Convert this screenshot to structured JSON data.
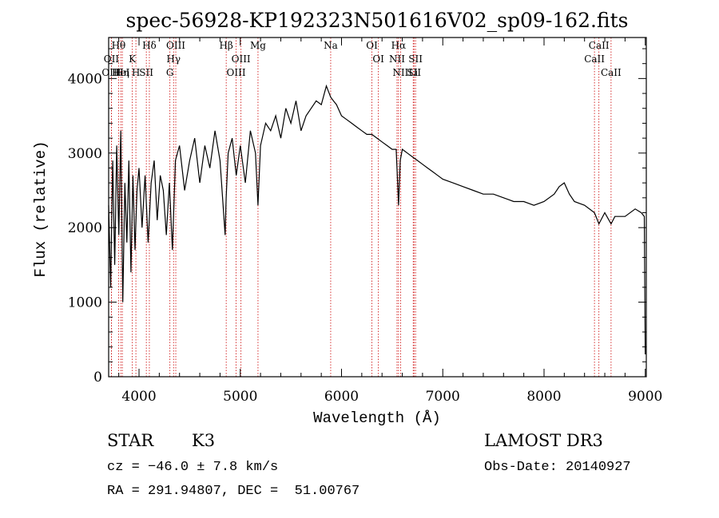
{
  "chart_data": {
    "type": "line",
    "title": "spec-56928-KP192323N501616V02_sp09-162.fits",
    "xlabel": "Wavelength (Å)",
    "ylabel": "Flux (relative)",
    "xlim": [
      3700,
      9010
    ],
    "ylim": [
      0,
      4550
    ],
    "xticks": [
      4000,
      5000,
      6000,
      7000,
      8000,
      9000
    ],
    "xtick_labels": [
      "4000",
      "5000",
      "6000",
      "7000",
      "8000",
      "9000"
    ],
    "yticks": [
      0,
      1000,
      2000,
      3000,
      4000
    ],
    "ytick_labels": [
      "0",
      "1000",
      "2000",
      "3000",
      "4000"
    ],
    "grid": false,
    "series": [
      {
        "name": "spectrum",
        "x": [
          3700,
          3720,
          3740,
          3760,
          3780,
          3800,
          3820,
          3840,
          3860,
          3880,
          3900,
          3920,
          3940,
          3960,
          3980,
          4000,
          4030,
          4060,
          4090,
          4120,
          4150,
          4180,
          4210,
          4240,
          4270,
          4300,
          4330,
          4360,
          4400,
          4450,
          4500,
          4550,
          4600,
          4650,
          4700,
          4750,
          4800,
          4850,
          4861,
          4880,
          4920,
          4960,
          5000,
          5050,
          5100,
          5150,
          5175,
          5200,
          5250,
          5300,
          5350,
          5400,
          5450,
          5500,
          5550,
          5600,
          5650,
          5700,
          5750,
          5800,
          5850,
          5893,
          5920,
          5950,
          6000,
          6050,
          6100,
          6150,
          6200,
          6250,
          6300,
          6350,
          6400,
          6450,
          6500,
          6540,
          6563,
          6580,
          6600,
          6650,
          6700,
          6750,
          6800,
          6850,
          6900,
          6950,
          7000,
          7100,
          7200,
          7300,
          7400,
          7500,
          7600,
          7700,
          7800,
          7900,
          8000,
          8100,
          8150,
          8200,
          8250,
          8300,
          8400,
          8498,
          8542,
          8600,
          8662,
          8700,
          8800,
          8900,
          8960,
          8990,
          9000
        ],
        "y": [
          2300,
          1200,
          2900,
          1500,
          3100,
          1900,
          3300,
          1000,
          2600,
          1800,
          2900,
          1400,
          2700,
          1700,
          2500,
          2800,
          2000,
          2700,
          1800,
          2600,
          2900,
          2100,
          2700,
          2500,
          1900,
          2600,
          1700,
          2900,
          3100,
          2500,
          2900,
          3200,
          2600,
          3100,
          2800,
          3300,
          2900,
          1900,
          2400,
          3000,
          3200,
          2700,
          3100,
          2600,
          3300,
          3000,
          2300,
          3100,
          3400,
          3300,
          3500,
          3200,
          3600,
          3400,
          3700,
          3300,
          3500,
          3600,
          3700,
          3650,
          3900,
          3750,
          3700,
          3650,
          3500,
          3450,
          3400,
          3350,
          3300,
          3250,
          3250,
          3200,
          3150,
          3100,
          3050,
          3050,
          2300,
          2900,
          3050,
          3000,
          2950,
          2900,
          2850,
          2800,
          2750,
          2700,
          2650,
          2600,
          2550,
          2500,
          2450,
          2450,
          2400,
          2350,
          2350,
          2300,
          2350,
          2450,
          2550,
          2600,
          2450,
          2350,
          2300,
          2200,
          2050,
          2200,
          2050,
          2150,
          2150,
          2250,
          2200,
          2150,
          300
        ]
      }
    ],
    "line_markers": [
      {
        "label": "Hθ",
        "x": 3798
      },
      {
        "label": "OII",
        "x": 3727
      },
      {
        "label": "OIII",
        "x": 3727
      },
      {
        "label": "HeI",
        "x": 3820
      },
      {
        "label": "Hη",
        "x": 3835
      },
      {
        "label": "K",
        "x": 3934
      },
      {
        "label": "H",
        "x": 3969
      },
      {
        "label": "Hδ",
        "x": 4102
      },
      {
        "label": "SII",
        "x": 4072
      },
      {
        "label": "OIII",
        "x": 4363
      },
      {
        "label": "Hγ",
        "x": 4341
      },
      {
        "label": "G",
        "x": 4305
      },
      {
        "label": "Hβ",
        "x": 4861
      },
      {
        "label": "OIII",
        "x": 5007
      },
      {
        "label": "OIII",
        "x": 4959
      },
      {
        "label": "Mg",
        "x": 5175
      },
      {
        "label": "Na",
        "x": 5893
      },
      {
        "label": "OI",
        "x": 6300
      },
      {
        "label": "OI",
        "x": 6364
      },
      {
        "label": "Hα",
        "x": 6563
      },
      {
        "label": "NII",
        "x": 6548
      },
      {
        "label": "NII",
        "x": 6583
      },
      {
        "label": "Li",
        "x": 6708
      },
      {
        "label": "SII",
        "x": 6716
      },
      {
        "label": "SII",
        "x": 6731
      },
      {
        "label": "CaII",
        "x": 8542
      },
      {
        "label": "CaII",
        "x": 8498
      },
      {
        "label": "CaII",
        "x": 8662
      }
    ]
  },
  "info": {
    "object_class": "STAR",
    "subclass": "K3",
    "survey": "LAMOST DR3",
    "cz": "cz = −46.0 ± 7.8 km/s",
    "obs_date": "Obs-Date: 20140927",
    "coords": "RA = 291.94807, DEC =  51.00767"
  },
  "colors": {
    "axis": "#000000",
    "spectrum": "#000000",
    "marker_lines": "#cc0000"
  }
}
